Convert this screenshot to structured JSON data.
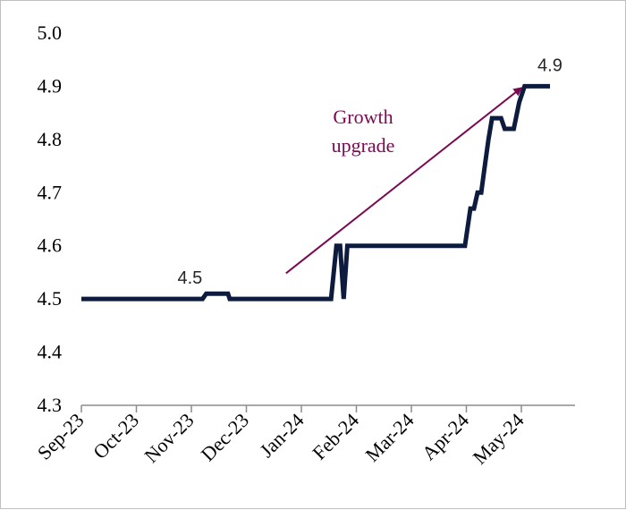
{
  "chart_data": {
    "type": "line",
    "x_ticks": [
      "Sep-23",
      "Oct-23",
      "Nov-23",
      "Dec-23",
      "Jan-24",
      "Feb-24",
      "Mar-24",
      "Apr-24",
      "May-24"
    ],
    "y_ticks": [
      "4.3",
      "4.4",
      "4.5",
      "4.6",
      "4.7",
      "4.8",
      "4.9",
      "5.0"
    ],
    "ylim": [
      4.3,
      5.0
    ],
    "grid": false,
    "series": [
      {
        "color": "#0d1b3e",
        "points": [
          [
            "2023-09-01",
            4.5
          ],
          [
            "2023-11-07",
            4.5
          ],
          [
            "2023-11-09",
            4.51
          ],
          [
            "2023-11-21",
            4.51
          ],
          [
            "2023-11-22",
            4.5
          ],
          [
            "2024-01-17",
            4.5
          ],
          [
            "2024-01-20",
            4.6
          ],
          [
            "2024-01-22",
            4.6
          ],
          [
            "2024-01-24",
            4.5
          ],
          [
            "2024-01-26",
            4.6
          ],
          [
            "2024-03-31",
            4.6
          ],
          [
            "2024-04-03",
            4.67
          ],
          [
            "2024-04-05",
            4.67
          ],
          [
            "2024-04-07",
            4.7
          ],
          [
            "2024-04-09",
            4.7
          ],
          [
            "2024-04-11",
            4.75
          ],
          [
            "2024-04-13",
            4.8
          ],
          [
            "2024-04-15",
            4.84
          ],
          [
            "2024-04-20",
            4.84
          ],
          [
            "2024-04-22",
            4.82
          ],
          [
            "2024-04-27",
            4.82
          ],
          [
            "2024-04-30",
            4.87
          ],
          [
            "2024-05-03",
            4.9
          ],
          [
            "2024-05-17",
            4.9
          ]
        ]
      }
    ],
    "data_labels": [
      {
        "text": "4.5",
        "x": "2023-11-01",
        "y": 4.5
      },
      {
        "text": "4.9",
        "x": "2024-05-17",
        "y": 4.9
      }
    ],
    "annotation": {
      "lines": [
        "Growth",
        "upgrade"
      ],
      "color": "#7a0a52",
      "arrow_from": [
        "2024-01-01",
        4.55
      ],
      "arrow_to": [
        "2024-05-02",
        4.9
      ]
    }
  }
}
